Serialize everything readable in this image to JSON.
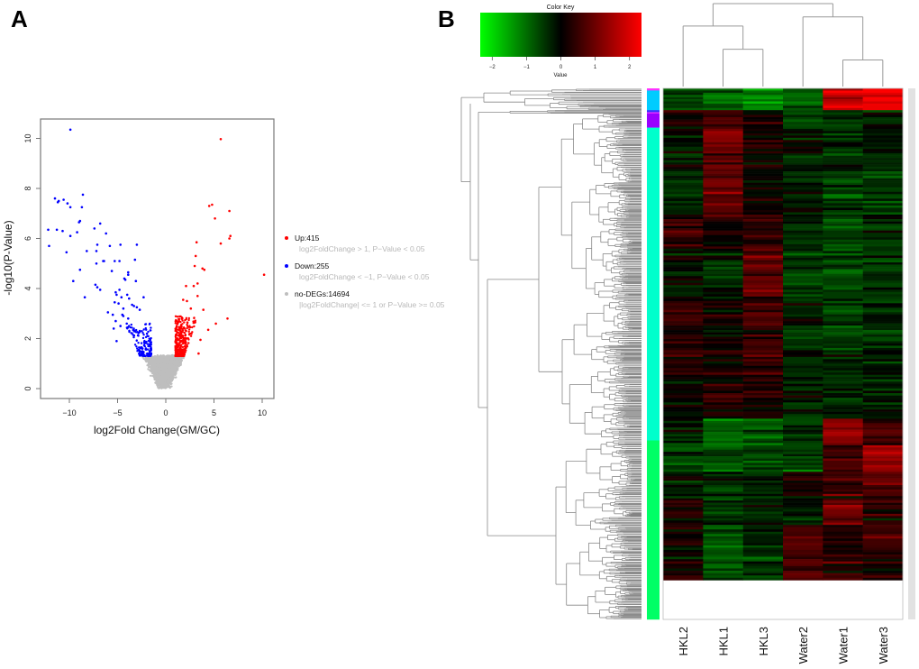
{
  "chart_data": [
    {
      "panel": "A",
      "type": "scatter",
      "title": "",
      "xlabel": "log2Fold Change(GM/GC)",
      "ylabel": "-log10(P-Value)",
      "xlim": [
        -13,
        11
      ],
      "ylim": [
        -0.4,
        10.8
      ],
      "xticks": [
        -10,
        -5,
        0,
        5,
        10
      ],
      "yticks": [
        0,
        2,
        4,
        6,
        8,
        10
      ],
      "grid": false,
      "legend_position": "right",
      "thresholds": {
        "log2fc": 1,
        "pvalue": 0.05
      },
      "series": [
        {
          "name": "Up",
          "count": 415,
          "label": "Up:415",
          "description": "log2FoldChange > 1, P−Value < 0.05",
          "color": "#ff0000",
          "points": [
            [
              5.7,
              9.97
            ],
            [
              4.5,
              7.3
            ],
            [
              4.8,
              7.35
            ],
            [
              6.6,
              7.1
            ],
            [
              5.1,
              6.8
            ],
            [
              6.7,
              6.1
            ],
            [
              6.6,
              6.0
            ],
            [
              3.2,
              5.85
            ],
            [
              5.7,
              5.8
            ],
            [
              3.1,
              5.3
            ],
            [
              3.0,
              4.9
            ],
            [
              3.8,
              4.8
            ],
            [
              4.0,
              4.75
            ],
            [
              10.2,
              4.55
            ],
            [
              3.3,
              4.2
            ],
            [
              2.1,
              4.1
            ],
            [
              2.9,
              4.1
            ],
            [
              3.3,
              3.7
            ],
            [
              1.8,
              3.55
            ],
            [
              2.2,
              3.5
            ],
            [
              3.9,
              3.15
            ],
            [
              2.6,
              3.2
            ],
            [
              6.4,
              2.8
            ],
            [
              5.2,
              2.6
            ],
            [
              4.4,
              2.35
            ],
            [
              3.6,
              1.95
            ],
            [
              3.4,
              1.4
            ]
          ]
        },
        {
          "name": "Down",
          "count": 255,
          "label": "Down:255",
          "description": "log2FoldChange < −1, P−Value < 0.05",
          "color": "#0000ff",
          "points": [
            [
              -9.9,
              10.35
            ],
            [
              -8.6,
              7.75
            ],
            [
              -11.5,
              7.6
            ],
            [
              -11.1,
              7.5
            ],
            [
              -11.2,
              7.45
            ],
            [
              -10.6,
              7.55
            ],
            [
              -10.2,
              7.4
            ],
            [
              -9.9,
              7.25
            ],
            [
              -8.7,
              7.25
            ],
            [
              -8.9,
              6.7
            ],
            [
              -9.0,
              6.65
            ],
            [
              -6.8,
              6.6
            ],
            [
              -12.2,
              6.35
            ],
            [
              -11.3,
              6.35
            ],
            [
              -10.7,
              6.3
            ],
            [
              -9.2,
              6.25
            ],
            [
              -7.4,
              6.4
            ],
            [
              -6.2,
              6.2
            ],
            [
              -9.9,
              6.1
            ],
            [
              -7.1,
              5.75
            ],
            [
              -5.8,
              5.7
            ],
            [
              -4.7,
              5.75
            ],
            [
              -3.0,
              5.75
            ],
            [
              -12.1,
              5.7
            ],
            [
              -10.3,
              5.45
            ],
            [
              -8.2,
              5.5
            ],
            [
              -7.2,
              5.5
            ],
            [
              -6.5,
              5.1
            ],
            [
              -6.4,
              5.1
            ],
            [
              -5.3,
              5.1
            ],
            [
              -4.8,
              5.1
            ],
            [
              -3.2,
              5.15
            ],
            [
              -7.2,
              5.0
            ],
            [
              -5.6,
              4.7
            ],
            [
              -3.9,
              4.65
            ],
            [
              -3.9,
              4.55
            ],
            [
              -8.9,
              4.75
            ],
            [
              -4.3,
              4.4
            ],
            [
              -4.2,
              4.35
            ],
            [
              -9.6,
              4.3
            ],
            [
              -3.1,
              4.3
            ],
            [
              -7.3,
              4.15
            ],
            [
              -7.1,
              4.05
            ],
            [
              -6.8,
              3.95
            ],
            [
              -4.8,
              3.95
            ],
            [
              -5.2,
              3.85
            ],
            [
              -5.1,
              3.75
            ],
            [
              -4.6,
              3.65
            ],
            [
              -4.0,
              3.75
            ],
            [
              -3.8,
              3.6
            ],
            [
              -8.4,
              3.65
            ],
            [
              -2.3,
              3.65
            ],
            [
              -5.3,
              3.45
            ],
            [
              -4.9,
              3.4
            ],
            [
              -3.5,
              3.35
            ],
            [
              -3.3,
              3.3
            ],
            [
              -4.4,
              3.2
            ],
            [
              -3.0,
              3.25
            ],
            [
              -2.7,
              3.15
            ],
            [
              -6.0,
              3.05
            ],
            [
              -5.5,
              2.95
            ],
            [
              -4.5,
              2.95
            ],
            [
              -3.9,
              2.8
            ],
            [
              -4.4,
              2.9
            ],
            [
              -5.2,
              2.7
            ],
            [
              -4.7,
              2.5
            ],
            [
              -5.4,
              2.4
            ],
            [
              -5.1,
              1.9
            ]
          ]
        },
        {
          "name": "no-DEGs",
          "count": 14694,
          "label": "no-DEGs:14694",
          "description": "|log2FoldChange| <= 1 or P−Value >= 0.05",
          "color": "#bebebe"
        }
      ]
    },
    {
      "panel": "B",
      "type": "heatmap",
      "title": "",
      "columns": [
        "HKL2",
        "HKL1",
        "HKL3",
        "Water2",
        "Water1",
        "Water3"
      ],
      "color_key": {
        "title": "Color Key",
        "xlabel": "Value",
        "range": [
          -2.35,
          2.35
        ],
        "ticks": [
          -2,
          -1,
          0,
          1,
          2
        ],
        "colors": [
          "#00ff00",
          "#000000",
          "#ff0000"
        ]
      },
      "column_dendrogram": {
        "merges": [
          {
            "children": [
              "HKL1",
              "HKL3"
            ],
            "height": 0.45
          },
          {
            "children": [
              "Water1",
              "Water3"
            ],
            "height": 0.32
          },
          {
            "children": [
              "HKL2",
              "HKL1+HKL3"
            ],
            "height": 0.73
          },
          {
            "children": [
              "Water2",
              "Water1+Water3"
            ],
            "height": 0.84
          },
          {
            "children": [
              "HKL",
              "Water"
            ],
            "height": 1.0
          }
        ]
      },
      "row_side_colors": [
        {
          "color": "#ff33ff",
          "fraction": 0.004
        },
        {
          "color": "#00ccff",
          "fraction": 0.037
        },
        {
          "color": "#3333ff",
          "fraction": 0.004
        },
        {
          "color": "#ff33ff",
          "fraction": 0.002
        },
        {
          "color": "#9900ff",
          "fraction": 0.027
        },
        {
          "color": "#00ffcc",
          "fraction": 0.589
        },
        {
          "color": "#00ff66",
          "fraction": 0.337
        }
      ],
      "row_blocks": [
        {
          "fraction": 0.041,
          "values": [
            -0.6,
            -1.0,
            -1.3,
            -1.0,
            1.8,
            2.2
          ]
        },
        {
          "fraction": 0.031,
          "values": [
            0.3,
            0.6,
            0.1,
            -0.6,
            -0.5,
            -0.3
          ]
        },
        {
          "fraction": 0.08,
          "values": [
            -0.2,
            1.0,
            0.2,
            -0.2,
            -0.4,
            -0.3
          ]
        },
        {
          "fraction": 0.09,
          "values": [
            -0.3,
            0.9,
            0.1,
            -0.2,
            -0.5,
            -0.4
          ]
        },
        {
          "fraction": 0.06,
          "values": [
            0.5,
            0.2,
            0.4,
            -0.3,
            -0.6,
            -0.3
          ]
        },
        {
          "fraction": 0.09,
          "values": [
            -0.1,
            -0.2,
            0.8,
            -0.4,
            -0.6,
            -0.4
          ]
        },
        {
          "fraction": 0.08,
          "values": [
            0.4,
            0.1,
            0.6,
            -0.3,
            -0.5,
            -0.3
          ]
        },
        {
          "fraction": 0.08,
          "values": [
            0.3,
            0.1,
            0.5,
            -0.3,
            -0.4,
            -0.3
          ]
        },
        {
          "fraction": 0.07,
          "values": [
            0.1,
            0.3,
            0.3,
            -0.2,
            -0.3,
            -0.2
          ]
        },
        {
          "fraction": 0.05,
          "values": [
            -0.4,
            -1.0,
            -0.9,
            -0.5,
            1.3,
            0.6
          ]
        },
        {
          "fraction": 0.05,
          "values": [
            -0.6,
            -0.8,
            -0.6,
            -0.6,
            0.6,
            1.5
          ]
        },
        {
          "fraction": 0.05,
          "values": [
            -0.3,
            -0.5,
            -0.4,
            0.2,
            0.4,
            0.6
          ]
        },
        {
          "fraction": 0.05,
          "values": [
            0.1,
            -0.6,
            -0.4,
            -0.3,
            1.0,
            0.3
          ]
        },
        {
          "fraction": 0.06,
          "values": [
            0.1,
            -0.8,
            -0.4,
            0.7,
            0.2,
            0.5
          ]
        },
        {
          "fraction": 0.044,
          "values": [
            0.2,
            -0.7,
            -0.5,
            0.6,
            0.4,
            0.5
          ]
        }
      ]
    }
  ],
  "panel_labels": {
    "a": "A",
    "b": "B"
  }
}
